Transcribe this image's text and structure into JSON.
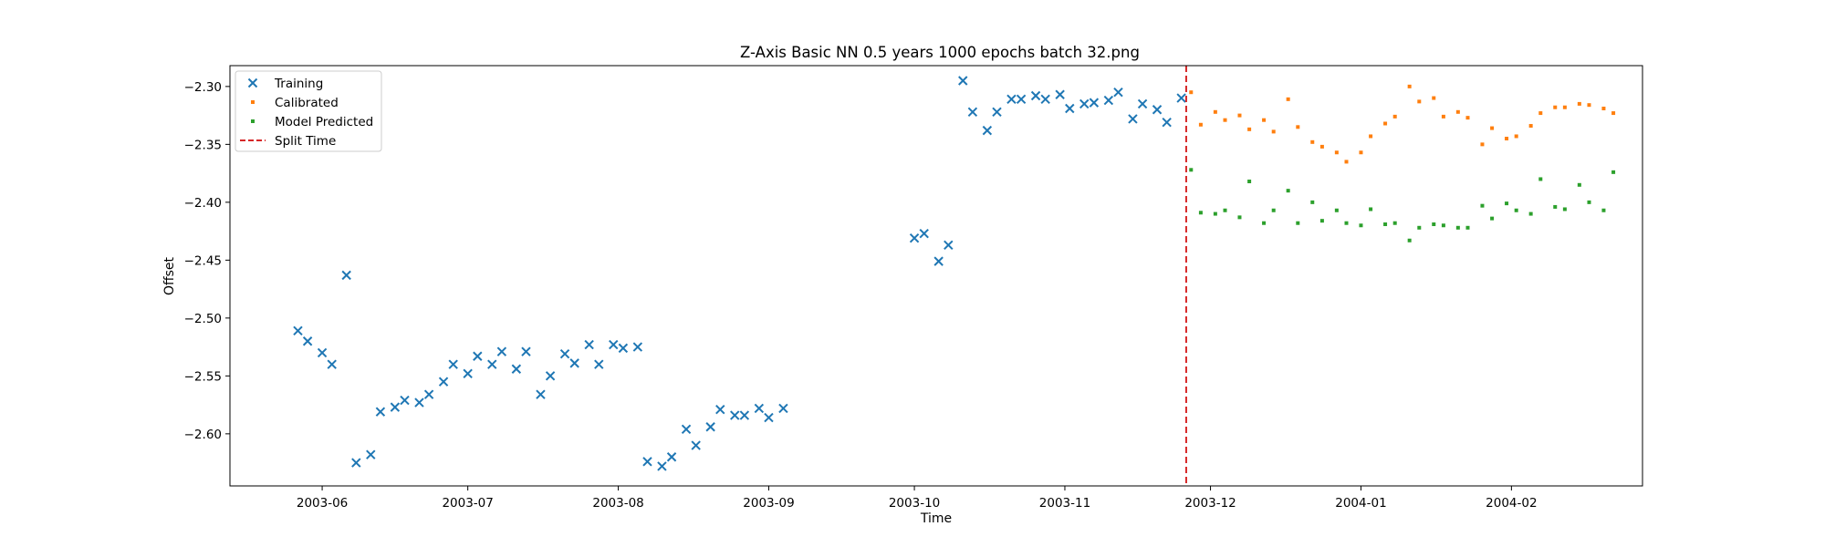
{
  "chart_data": {
    "type": "scatter",
    "title": "Z-Axis Basic NN 0.5 years 1000 epochs batch 32.png",
    "xlabel": "Time",
    "ylabel": "Offset",
    "x_type": "date",
    "xlim": [
      "2003-05-13",
      "2004-02-28"
    ],
    "ylim": [
      -2.645,
      -2.282
    ],
    "x_ticks": [
      "2003-06",
      "2003-07",
      "2003-08",
      "2003-09",
      "2003-10",
      "2003-11",
      "2003-12",
      "2004-01",
      "2004-02"
    ],
    "y_ticks": [
      -2.6,
      -2.55,
      -2.5,
      -2.45,
      -2.4,
      -2.35,
      -2.3
    ],
    "grid": false,
    "legend_position": "upper-left",
    "series": [
      {
        "name": "Training",
        "marker": "x",
        "color": "#1f77b4",
        "points": [
          [
            "2003-05-27",
            -2.511
          ],
          [
            "2003-05-29",
            -2.52
          ],
          [
            "2003-06-01",
            -2.53
          ],
          [
            "2003-06-03",
            -2.54
          ],
          [
            "2003-06-06",
            -2.463
          ],
          [
            "2003-06-08",
            -2.625
          ],
          [
            "2003-06-11",
            -2.618
          ],
          [
            "2003-06-13",
            -2.581
          ],
          [
            "2003-06-16",
            -2.577
          ],
          [
            "2003-06-18",
            -2.571
          ],
          [
            "2003-06-21",
            -2.573
          ],
          [
            "2003-06-23",
            -2.566
          ],
          [
            "2003-06-26",
            -2.555
          ],
          [
            "2003-06-28",
            -2.54
          ],
          [
            "2003-07-01",
            -2.548
          ],
          [
            "2003-07-03",
            -2.533
          ],
          [
            "2003-07-06",
            -2.54
          ],
          [
            "2003-07-08",
            -2.529
          ],
          [
            "2003-07-11",
            -2.544
          ],
          [
            "2003-07-13",
            -2.529
          ],
          [
            "2003-07-16",
            -2.566
          ],
          [
            "2003-07-18",
            -2.55
          ],
          [
            "2003-07-21",
            -2.531
          ],
          [
            "2003-07-23",
            -2.539
          ],
          [
            "2003-07-26",
            -2.523
          ],
          [
            "2003-07-28",
            -2.54
          ],
          [
            "2003-07-31",
            -2.523
          ],
          [
            "2003-08-02",
            -2.526
          ],
          [
            "2003-08-05",
            -2.525
          ],
          [
            "2003-08-07",
            -2.624
          ],
          [
            "2003-08-10",
            -2.628
          ],
          [
            "2003-08-12",
            -2.62
          ],
          [
            "2003-08-15",
            -2.596
          ],
          [
            "2003-08-17",
            -2.61
          ],
          [
            "2003-08-20",
            -2.594
          ],
          [
            "2003-08-22",
            -2.579
          ],
          [
            "2003-08-25",
            -2.584
          ],
          [
            "2003-08-27",
            -2.584
          ],
          [
            "2003-08-30",
            -2.578
          ],
          [
            "2003-09-01",
            -2.586
          ],
          [
            "2003-09-04",
            -2.578
          ],
          [
            "2003-10-01",
            -2.431
          ],
          [
            "2003-10-03",
            -2.427
          ],
          [
            "2003-10-06",
            -2.451
          ],
          [
            "2003-10-08",
            -2.437
          ],
          [
            "2003-10-11",
            -2.295
          ],
          [
            "2003-10-13",
            -2.322
          ],
          [
            "2003-10-16",
            -2.338
          ],
          [
            "2003-10-18",
            -2.322
          ],
          [
            "2003-10-21",
            -2.311
          ],
          [
            "2003-10-23",
            -2.311
          ],
          [
            "2003-10-26",
            -2.308
          ],
          [
            "2003-10-28",
            -2.311
          ],
          [
            "2003-10-31",
            -2.307
          ],
          [
            "2003-11-02",
            -2.319
          ],
          [
            "2003-11-05",
            -2.315
          ],
          [
            "2003-11-07",
            -2.314
          ],
          [
            "2003-11-10",
            -2.312
          ],
          [
            "2003-11-12",
            -2.305
          ],
          [
            "2003-11-15",
            -2.328
          ],
          [
            "2003-11-17",
            -2.315
          ],
          [
            "2003-11-20",
            -2.32
          ],
          [
            "2003-11-22",
            -2.331
          ],
          [
            "2003-11-25",
            -2.31
          ]
        ]
      },
      {
        "name": "Calibrated",
        "marker": "dot",
        "color": "#ff7f0e",
        "points": [
          [
            "2003-11-27",
            -2.305
          ],
          [
            "2003-11-29",
            -2.333
          ],
          [
            "2003-12-02",
            -2.322
          ],
          [
            "2003-12-04",
            -2.329
          ],
          [
            "2003-12-07",
            -2.325
          ],
          [
            "2003-12-09",
            -2.337
          ],
          [
            "2003-12-12",
            -2.329
          ],
          [
            "2003-12-14",
            -2.339
          ],
          [
            "2003-12-17",
            -2.311
          ],
          [
            "2003-12-19",
            -2.335
          ],
          [
            "2003-12-22",
            -2.348
          ],
          [
            "2003-12-24",
            -2.352
          ],
          [
            "2003-12-27",
            -2.357
          ],
          [
            "2003-12-29",
            -2.365
          ],
          [
            "2004-01-01",
            -2.357
          ],
          [
            "2004-01-03",
            -2.343
          ],
          [
            "2004-01-06",
            -2.332
          ],
          [
            "2004-01-08",
            -2.326
          ],
          [
            "2004-01-11",
            -2.3
          ],
          [
            "2004-01-13",
            -2.313
          ],
          [
            "2004-01-16",
            -2.31
          ],
          [
            "2004-01-18",
            -2.326
          ],
          [
            "2004-01-21",
            -2.322
          ],
          [
            "2004-01-23",
            -2.327
          ],
          [
            "2004-01-26",
            -2.35
          ],
          [
            "2004-01-28",
            -2.336
          ],
          [
            "2004-01-31",
            -2.345
          ],
          [
            "2004-02-02",
            -2.343
          ],
          [
            "2004-02-05",
            -2.334
          ],
          [
            "2004-02-07",
            -2.323
          ],
          [
            "2004-02-10",
            -2.318
          ],
          [
            "2004-02-12",
            -2.318
          ],
          [
            "2004-02-15",
            -2.315
          ],
          [
            "2004-02-17",
            -2.316
          ],
          [
            "2004-02-20",
            -2.319
          ],
          [
            "2004-02-22",
            -2.323
          ]
        ]
      },
      {
        "name": "Model Predicted",
        "marker": "dot",
        "color": "#2ca02c",
        "points": [
          [
            "2003-11-27",
            -2.372
          ],
          [
            "2003-11-29",
            -2.409
          ],
          [
            "2003-12-02",
            -2.41
          ],
          [
            "2003-12-04",
            -2.407
          ],
          [
            "2003-12-07",
            -2.413
          ],
          [
            "2003-12-09",
            -2.382
          ],
          [
            "2003-12-12",
            -2.418
          ],
          [
            "2003-12-14",
            -2.407
          ],
          [
            "2003-12-17",
            -2.39
          ],
          [
            "2003-12-19",
            -2.418
          ],
          [
            "2003-12-22",
            -2.4
          ],
          [
            "2003-12-24",
            -2.416
          ],
          [
            "2003-12-27",
            -2.407
          ],
          [
            "2003-12-29",
            -2.418
          ],
          [
            "2004-01-01",
            -2.42
          ],
          [
            "2004-01-03",
            -2.406
          ],
          [
            "2004-01-06",
            -2.419
          ],
          [
            "2004-01-08",
            -2.418
          ],
          [
            "2004-01-11",
            -2.433
          ],
          [
            "2004-01-13",
            -2.422
          ],
          [
            "2004-01-16",
            -2.419
          ],
          [
            "2004-01-18",
            -2.42
          ],
          [
            "2004-01-21",
            -2.422
          ],
          [
            "2004-01-23",
            -2.422
          ],
          [
            "2004-01-26",
            -2.403
          ],
          [
            "2004-01-28",
            -2.414
          ],
          [
            "2004-01-31",
            -2.401
          ],
          [
            "2004-02-02",
            -2.407
          ],
          [
            "2004-02-05",
            -2.41
          ],
          [
            "2004-02-07",
            -2.38
          ],
          [
            "2004-02-10",
            -2.404
          ],
          [
            "2004-02-12",
            -2.406
          ],
          [
            "2004-02-15",
            -2.385
          ],
          [
            "2004-02-17",
            -2.4
          ],
          [
            "2004-02-20",
            -2.407
          ],
          [
            "2004-02-22",
            -2.374
          ]
        ]
      }
    ],
    "vlines": [
      {
        "name": "Split Time",
        "x": "2003-11-26",
        "color": "#d62728",
        "style": "dashed"
      }
    ],
    "legend": [
      {
        "label": "Training",
        "marker": "x",
        "color": "#1f77b4"
      },
      {
        "label": "Calibrated",
        "marker": "dot",
        "color": "#ff7f0e"
      },
      {
        "label": "Model Predicted",
        "marker": "dot",
        "color": "#2ca02c"
      },
      {
        "label": "Split Time",
        "marker": "dashed-line",
        "color": "#d62728"
      }
    ]
  }
}
